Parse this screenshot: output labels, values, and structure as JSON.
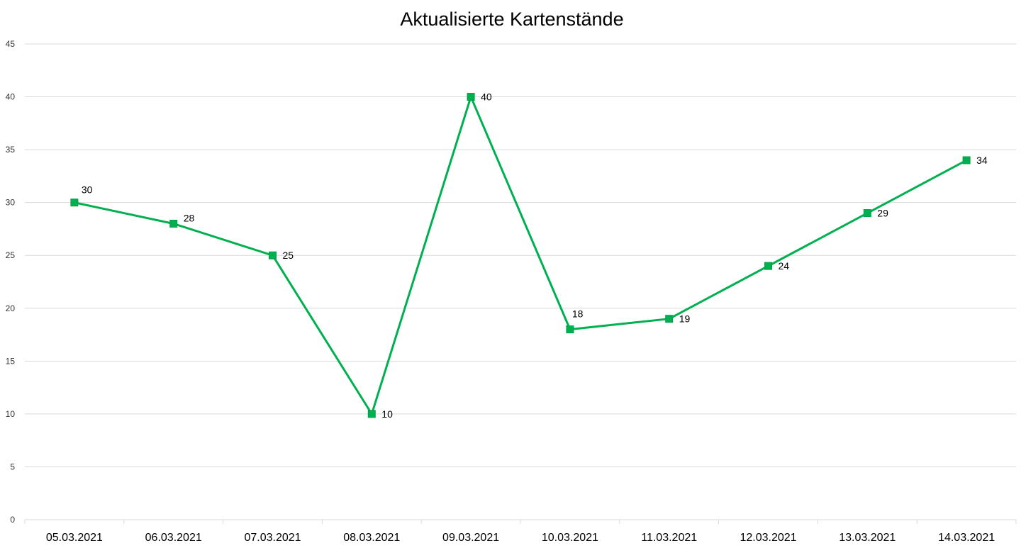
{
  "chart_data": {
    "type": "line",
    "title": "Aktualisierte Kartenstände",
    "xlabel": "",
    "ylabel": "",
    "categories": [
      "05.03.2021",
      "06.03.2021",
      "07.03.2021",
      "08.03.2021",
      "09.03.2021",
      "10.03.2021",
      "11.03.2021",
      "12.03.2021",
      "13.03.2021",
      "14.03.2021"
    ],
    "series": [
      {
        "values": [
          30,
          28,
          25,
          10,
          40,
          18,
          19,
          24,
          29,
          34
        ],
        "color": "#00b050"
      }
    ],
    "ylim": [
      0,
      45
    ],
    "yticks": [
      0,
      5,
      10,
      15,
      20,
      25,
      30,
      35,
      40,
      45
    ],
    "grid": true,
    "legend": "none",
    "data_labels": true,
    "marker": "square"
  }
}
